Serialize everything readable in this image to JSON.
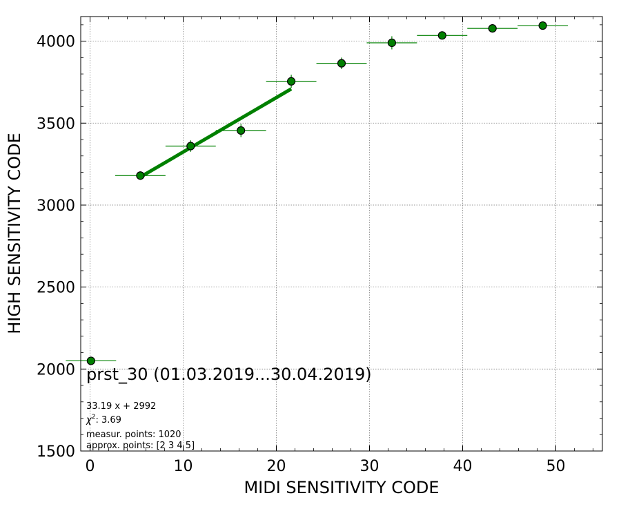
{
  "chart_data": {
    "type": "scatter",
    "title": "",
    "xlabel": "MIDI SENSITIVITY CODE",
    "ylabel": "HIGH SENSITIVITY CODE",
    "xlim": [
      -1,
      55
    ],
    "ylim": [
      1500,
      4150
    ],
    "xticks": [
      0,
      10,
      20,
      30,
      40,
      50
    ],
    "yticks": [
      1500,
      2000,
      2500,
      3000,
      3500,
      4000
    ],
    "grid": true,
    "series": [
      {
        "color": "#008000",
        "marker_edge": "#000000",
        "points": [
          {
            "x": 0.1,
            "y": 2050,
            "xerr_low": 2.7,
            "xerr_high": 2.7,
            "yerr": 0
          },
          {
            "x": 5.4,
            "y": 3180,
            "xerr_low": 2.7,
            "xerr_high": 2.7,
            "yerr": 25
          },
          {
            "x": 10.8,
            "y": 3360,
            "xerr_low": 2.7,
            "xerr_high": 2.7,
            "yerr": 35
          },
          {
            "x": 16.2,
            "y": 3455,
            "xerr_low": 2.7,
            "xerr_high": 2.7,
            "yerr": 40
          },
          {
            "x": 21.6,
            "y": 3755,
            "xerr_low": 2.7,
            "xerr_high": 2.7,
            "yerr": 40
          },
          {
            "x": 27.0,
            "y": 3865,
            "xerr_low": 2.7,
            "xerr_high": 2.7,
            "yerr": 35
          },
          {
            "x": 32.4,
            "y": 3990,
            "xerr_low": 2.7,
            "xerr_high": 2.7,
            "yerr": 40
          },
          {
            "x": 37.8,
            "y": 4035,
            "xerr_low": 2.7,
            "xerr_high": 2.7,
            "yerr": 20
          },
          {
            "x": 43.2,
            "y": 4078,
            "xerr_low": 2.7,
            "xerr_high": 2.7,
            "yerr": 15
          },
          {
            "x": 48.6,
            "y": 4095,
            "xerr_low": 2.7,
            "xerr_high": 2.7,
            "yerr": 12
          }
        ]
      }
    ],
    "fit": {
      "slope": 33.19,
      "intercept": 2992,
      "x_range": [
        5.4,
        21.6
      ],
      "color": "#008000"
    },
    "annotations": {
      "period": "prst_30 (01.03.2019...30.04.2019)",
      "fit_equation": "33.19 x + 2992",
      "chi2_value": ": 3.69",
      "measured_points": "measur. points: 1020",
      "approx_points": "approx. points: [2 3 4 5]"
    }
  }
}
